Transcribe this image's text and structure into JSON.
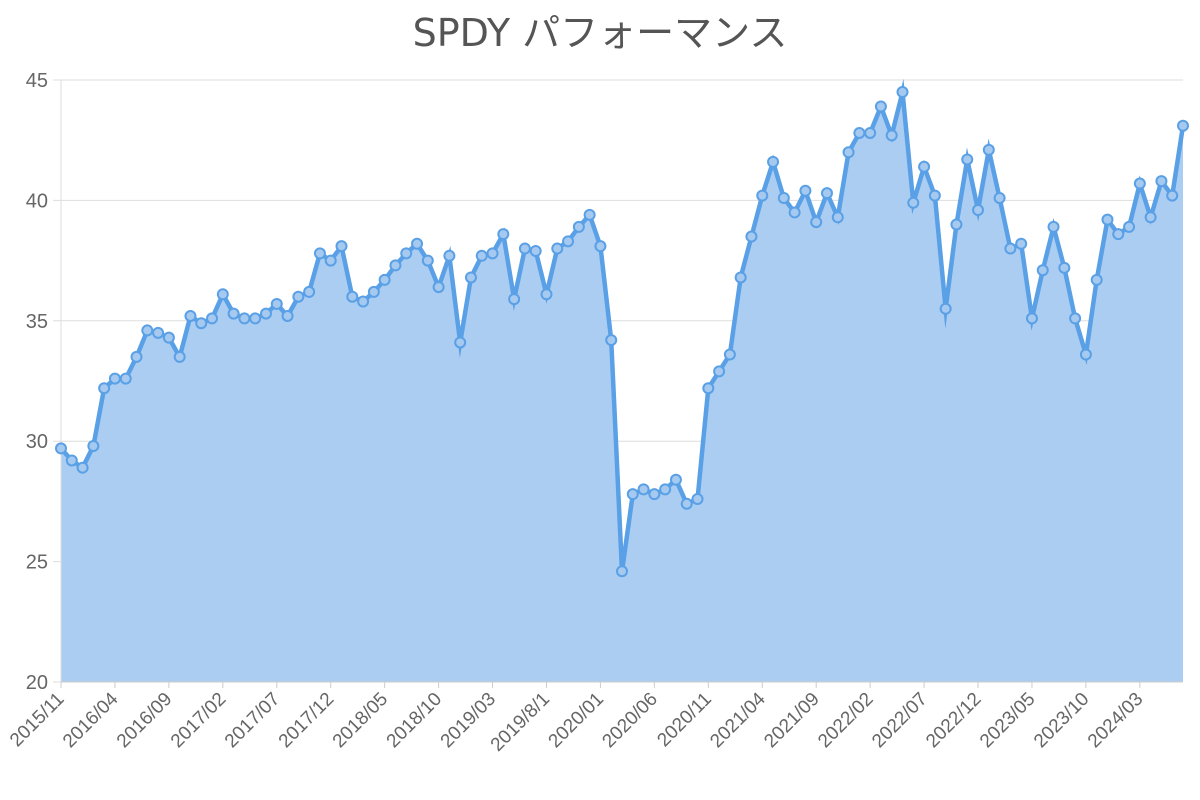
{
  "chart_data": {
    "type": "area",
    "title": "SPDY パフォーマンス",
    "xlabel": "",
    "ylabel": "",
    "ylim": [
      20,
      45
    ],
    "yticks": [
      20,
      25,
      30,
      35,
      40,
      45
    ],
    "grid": true,
    "legend": "none",
    "x_tick_labels": [
      "2015/11",
      "2016/04",
      "2016/09",
      "2017/02",
      "2017/07",
      "2017/12",
      "2018/05",
      "2018/10",
      "2019/03",
      "2019/8/1",
      "2020/01",
      "2020/06",
      "2020/11",
      "2021/04",
      "2021/09",
      "2022/02",
      "2022/07",
      "2022/12",
      "2023/05",
      "2023/10",
      "2024/03"
    ],
    "x_tick_every": 5,
    "series": [
      {
        "values": [
          29.7,
          29.2,
          28.9,
          29.8,
          32.2,
          32.6,
          32.6,
          33.5,
          34.6,
          34.5,
          34.3,
          33.5,
          35.2,
          34.9,
          35.1,
          36.1,
          35.3,
          35.1,
          35.1,
          35.3,
          35.7,
          35.2,
          36.0,
          36.2,
          37.8,
          37.5,
          38.1,
          36.0,
          35.8,
          36.2,
          36.7,
          37.3,
          37.8,
          38.2,
          37.5,
          36.4,
          37.7,
          34.1,
          36.8,
          37.7,
          37.8,
          38.6,
          35.9,
          38.0,
          37.9,
          36.1,
          38.0,
          38.3,
          38.9,
          39.4,
          38.1,
          34.2,
          24.6,
          27.8,
          28.0,
          27.8,
          28.0,
          28.4,
          27.4,
          27.6,
          32.2,
          32.9,
          33.6,
          36.8,
          38.5,
          40.2,
          41.6,
          40.1,
          39.5,
          40.4,
          39.1,
          40.3,
          39.3,
          42.0,
          42.8,
          42.8,
          43.9,
          42.7,
          44.5,
          39.9,
          41.4,
          40.2,
          35.5,
          39.0,
          41.7,
          39.6,
          42.1,
          40.1,
          38.0,
          38.2,
          35.1,
          37.1,
          38.9,
          37.2,
          35.1,
          33.6,
          36.7,
          39.2,
          38.6,
          38.9,
          40.7,
          39.3,
          40.8,
          40.2,
          43.1
        ],
        "color": "#5aa0e6",
        "fill_color": "#abcdf2"
      }
    ]
  }
}
